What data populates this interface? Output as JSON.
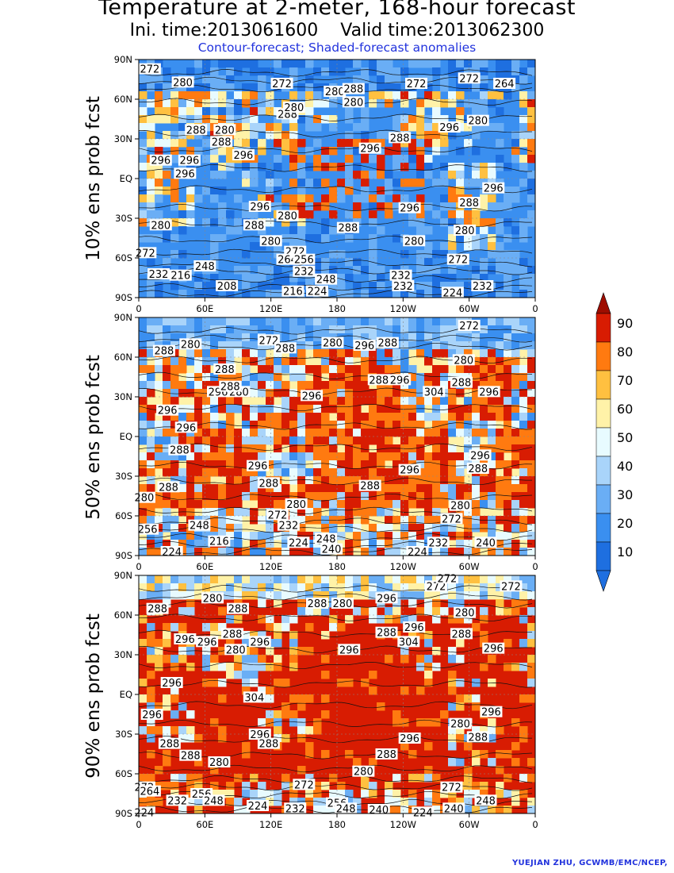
{
  "header": {
    "title": "Temperature at 2-meter, 168-hour forecast",
    "times": "Ini. time:2013061600    Valid time:2013062300",
    "subtitle": "Contour-forecast; Shaded-forecast anomalies"
  },
  "credit": "YUEJIAN ZHU, GCWMB/EMC/NCEP,",
  "colors": {
    "c10": "#1e6fe0",
    "c20": "#3a8ff0",
    "c30": "#6aaef5",
    "c40": "#a9d4fa",
    "c50": "#e8fbff",
    "c60": "#fff2a8",
    "c70": "#ffc040",
    "c80": "#ff7a10",
    "c90": "#d81c02",
    "cTop": "#9e0d00"
  },
  "axes": {
    "lat_ticks": [
      "90N",
      "60N",
      "30N",
      "EQ",
      "30S",
      "60S",
      "90S"
    ],
    "lon_ticks": [
      "0",
      "60E",
      "120E",
      "180",
      "120W",
      "60W",
      "0"
    ]
  },
  "colorbar": {
    "ticks": [
      "90",
      "80",
      "70",
      "60",
      "50",
      "40",
      "30",
      "20",
      "10"
    ]
  },
  "chart_data": {
    "type": "heatmap",
    "panels": [
      {
        "label": "10% ens prob fcst",
        "dominant_class": 20,
        "contour_labels": [
          {
            "text": "272",
            "lon": 10,
            "lat": 83
          },
          {
            "text": "280",
            "lon": 40,
            "lat": 73
          },
          {
            "text": "272",
            "lon": 130,
            "lat": 72
          },
          {
            "text": "280",
            "lon": 178,
            "lat": 66
          },
          {
            "text": "288",
            "lon": 195,
            "lat": 68
          },
          {
            "text": "272",
            "lon": 252,
            "lat": 72
          },
          {
            "text": "272",
            "lon": 300,
            "lat": 76
          },
          {
            "text": "264",
            "lon": 332,
            "lat": 72
          },
          {
            "text": "280",
            "lon": 195,
            "lat": 58
          },
          {
            "text": "288",
            "lon": 135,
            "lat": 49
          },
          {
            "text": "280",
            "lon": 141,
            "lat": 54
          },
          {
            "text": "280",
            "lon": 308,
            "lat": 44
          },
          {
            "text": "288",
            "lon": 52,
            "lat": 37
          },
          {
            "text": "280",
            "lon": 78,
            "lat": 37
          },
          {
            "text": "296",
            "lon": 282,
            "lat": 39
          },
          {
            "text": "288",
            "lon": 75,
            "lat": 28
          },
          {
            "text": "288",
            "lon": 237,
            "lat": 31
          },
          {
            "text": "296",
            "lon": 210,
            "lat": 23
          },
          {
            "text": "296",
            "lon": 20,
            "lat": 14
          },
          {
            "text": "296",
            "lon": 46,
            "lat": 14
          },
          {
            "text": "296",
            "lon": 95,
            "lat": 18
          },
          {
            "text": "296",
            "lon": 42,
            "lat": 4
          },
          {
            "text": "296",
            "lon": 322,
            "lat": -7
          },
          {
            "text": "288",
            "lon": 300,
            "lat": -18
          },
          {
            "text": "296",
            "lon": 110,
            "lat": -21
          },
          {
            "text": "280",
            "lon": 135,
            "lat": -28
          },
          {
            "text": "296",
            "lon": 246,
            "lat": -22
          },
          {
            "text": "280",
            "lon": 20,
            "lat": -35
          },
          {
            "text": "288",
            "lon": 105,
            "lat": -35
          },
          {
            "text": "288",
            "lon": 190,
            "lat": -37
          },
          {
            "text": "280",
            "lon": 120,
            "lat": -47
          },
          {
            "text": "280",
            "lon": 250,
            "lat": -47
          },
          {
            "text": "280",
            "lon": 296,
            "lat": -39
          },
          {
            "text": "272",
            "lon": 6,
            "lat": -56
          },
          {
            "text": "272",
            "lon": 142,
            "lat": -55
          },
          {
            "text": "264",
            "lon": 135,
            "lat": -61
          },
          {
            "text": "256",
            "lon": 150,
            "lat": -61
          },
          {
            "text": "272",
            "lon": 290,
            "lat": -61
          },
          {
            "text": "248",
            "lon": 60,
            "lat": -66
          },
          {
            "text": "232",
            "lon": 18,
            "lat": -72
          },
          {
            "text": "216",
            "lon": 38,
            "lat": -73
          },
          {
            "text": "232",
            "lon": 150,
            "lat": -70
          },
          {
            "text": "248",
            "lon": 170,
            "lat": -76
          },
          {
            "text": "208",
            "lon": 80,
            "lat": -81
          },
          {
            "text": "216",
            "lon": 140,
            "lat": -85
          },
          {
            "text": "224",
            "lon": 162,
            "lat": -85
          },
          {
            "text": "232",
            "lon": 238,
            "lat": -73
          },
          {
            "text": "232",
            "lon": 240,
            "lat": -81
          },
          {
            "text": "224",
            "lon": 285,
            "lat": -86
          },
          {
            "text": "232",
            "lon": 312,
            "lat": -81
          }
        ]
      },
      {
        "label": "50% ens prob fcst",
        "dominant_class": 60,
        "contour_labels": [
          {
            "text": "272",
            "lon": 300,
            "lat": 84
          },
          {
            "text": "272",
            "lon": 118,
            "lat": 73
          },
          {
            "text": "288",
            "lon": 133,
            "lat": 67
          },
          {
            "text": "280",
            "lon": 47,
            "lat": 70
          },
          {
            "text": "288",
            "lon": 23,
            "lat": 65
          },
          {
            "text": "280",
            "lon": 176,
            "lat": 71
          },
          {
            "text": "296",
            "lon": 205,
            "lat": 69
          },
          {
            "text": "288",
            "lon": 226,
            "lat": 71
          },
          {
            "text": "280",
            "lon": 295,
            "lat": 58
          },
          {
            "text": "288",
            "lon": 78,
            "lat": 51
          },
          {
            "text": "296",
            "lon": 72,
            "lat": 34
          },
          {
            "text": "280",
            "lon": 91,
            "lat": 34
          },
          {
            "text": "288",
            "lon": 83,
            "lat": 38
          },
          {
            "text": "296",
            "lon": 157,
            "lat": 31
          },
          {
            "text": "288",
            "lon": 218,
            "lat": 43
          },
          {
            "text": "296",
            "lon": 237,
            "lat": 43
          },
          {
            "text": "304",
            "lon": 268,
            "lat": 34
          },
          {
            "text": "288",
            "lon": 293,
            "lat": 41
          },
          {
            "text": "296",
            "lon": 318,
            "lat": 34
          },
          {
            "text": "296",
            "lon": 26,
            "lat": 20
          },
          {
            "text": "296",
            "lon": 43,
            "lat": 7
          },
          {
            "text": "288",
            "lon": 37,
            "lat": -10
          },
          {
            "text": "296",
            "lon": 310,
            "lat": -14
          },
          {
            "text": "288",
            "lon": 308,
            "lat": -24
          },
          {
            "text": "296",
            "lon": 108,
            "lat": -22
          },
          {
            "text": "296",
            "lon": 246,
            "lat": -25
          },
          {
            "text": "288",
            "lon": 27,
            "lat": -38
          },
          {
            "text": "288",
            "lon": 118,
            "lat": -35
          },
          {
            "text": "288",
            "lon": 210,
            "lat": -37
          },
          {
            "text": "280",
            "lon": 5,
            "lat": -46
          },
          {
            "text": "280",
            "lon": 143,
            "lat": -51
          },
          {
            "text": "280",
            "lon": 292,
            "lat": -52
          },
          {
            "text": "272",
            "lon": 126,
            "lat": -59
          },
          {
            "text": "272",
            "lon": 284,
            "lat": -62
          },
          {
            "text": "256",
            "lon": 8,
            "lat": -70
          },
          {
            "text": "248",
            "lon": 55,
            "lat": -67
          },
          {
            "text": "232",
            "lon": 136,
            "lat": -67
          },
          {
            "text": "216",
            "lon": 73,
            "lat": -79
          },
          {
            "text": "224",
            "lon": 30,
            "lat": -87
          },
          {
            "text": "224",
            "lon": 145,
            "lat": -80
          },
          {
            "text": "248",
            "lon": 170,
            "lat": -77
          },
          {
            "text": "240",
            "lon": 175,
            "lat": -85
          },
          {
            "text": "224",
            "lon": 253,
            "lat": -87
          },
          {
            "text": "232",
            "lon": 272,
            "lat": -80
          },
          {
            "text": "240",
            "lon": 315,
            "lat": -80
          }
        ]
      },
      {
        "label": "90% ens prob fcst",
        "dominant_class": 90,
        "contour_labels": [
          {
            "text": "272",
            "lon": 270,
            "lat": 82
          },
          {
            "text": "272",
            "lon": 338,
            "lat": 82
          },
          {
            "text": "272",
            "lon": 280,
            "lat": 88
          },
          {
            "text": "288",
            "lon": 17,
            "lat": 65
          },
          {
            "text": "280",
            "lon": 67,
            "lat": 73
          },
          {
            "text": "288",
            "lon": 90,
            "lat": 65
          },
          {
            "text": "288",
            "lon": 162,
            "lat": 69
          },
          {
            "text": "280",
            "lon": 185,
            "lat": 69
          },
          {
            "text": "296",
            "lon": 225,
            "lat": 73
          },
          {
            "text": "280",
            "lon": 296,
            "lat": 62
          },
          {
            "text": "296",
            "lon": 42,
            "lat": 42
          },
          {
            "text": "296",
            "lon": 62,
            "lat": 40
          },
          {
            "text": "288",
            "lon": 85,
            "lat": 46
          },
          {
            "text": "296",
            "lon": 110,
            "lat": 40
          },
          {
            "text": "280",
            "lon": 88,
            "lat": 34
          },
          {
            "text": "296",
            "lon": 191,
            "lat": 34
          },
          {
            "text": "288",
            "lon": 225,
            "lat": 47
          },
          {
            "text": "296",
            "lon": 250,
            "lat": 51
          },
          {
            "text": "304",
            "lon": 245,
            "lat": 40
          },
          {
            "text": "288",
            "lon": 293,
            "lat": 46
          },
          {
            "text": "296",
            "lon": 322,
            "lat": 35
          },
          {
            "text": "296",
            "lon": 30,
            "lat": 9
          },
          {
            "text": "304",
            "lon": 105,
            "lat": -2
          },
          {
            "text": "296",
            "lon": 12,
            "lat": -15
          },
          {
            "text": "296",
            "lon": 320,
            "lat": -13
          },
          {
            "text": "280",
            "lon": 292,
            "lat": -22
          },
          {
            "text": "288",
            "lon": 308,
            "lat": -32
          },
          {
            "text": "296",
            "lon": 110,
            "lat": -30
          },
          {
            "text": "288",
            "lon": 118,
            "lat": -37
          },
          {
            "text": "296",
            "lon": 246,
            "lat": -33
          },
          {
            "text": "288",
            "lon": 28,
            "lat": -37
          },
          {
            "text": "288",
            "lon": 47,
            "lat": -46
          },
          {
            "text": "288",
            "lon": 225,
            "lat": -45
          },
          {
            "text": "280",
            "lon": 73,
            "lat": -51
          },
          {
            "text": "280",
            "lon": 204,
            "lat": -58
          },
          {
            "text": "272",
            "lon": 150,
            "lat": -68
          },
          {
            "text": "272",
            "lon": 284,
            "lat": -70
          },
          {
            "text": "272",
            "lon": 5,
            "lat": -70
          },
          {
            "text": "264",
            "lon": 10,
            "lat": -73
          },
          {
            "text": "256",
            "lon": 57,
            "lat": -75
          },
          {
            "text": "248",
            "lon": 68,
            "lat": -80
          },
          {
            "text": "232",
            "lon": 35,
            "lat": -80
          },
          {
            "text": "224",
            "lon": 108,
            "lat": -84
          },
          {
            "text": "232",
            "lon": 142,
            "lat": -86
          },
          {
            "text": "256",
            "lon": 180,
            "lat": -82
          },
          {
            "text": "248",
            "lon": 188,
            "lat": -86
          },
          {
            "text": "240",
            "lon": 218,
            "lat": -87
          },
          {
            "text": "248",
            "lon": 315,
            "lat": -80
          },
          {
            "text": "240",
            "lon": 286,
            "lat": -86
          },
          {
            "text": "224",
            "lon": 258,
            "lat": -89
          },
          {
            "text": "224",
            "lon": 5,
            "lat": -89
          }
        ]
      }
    ]
  }
}
